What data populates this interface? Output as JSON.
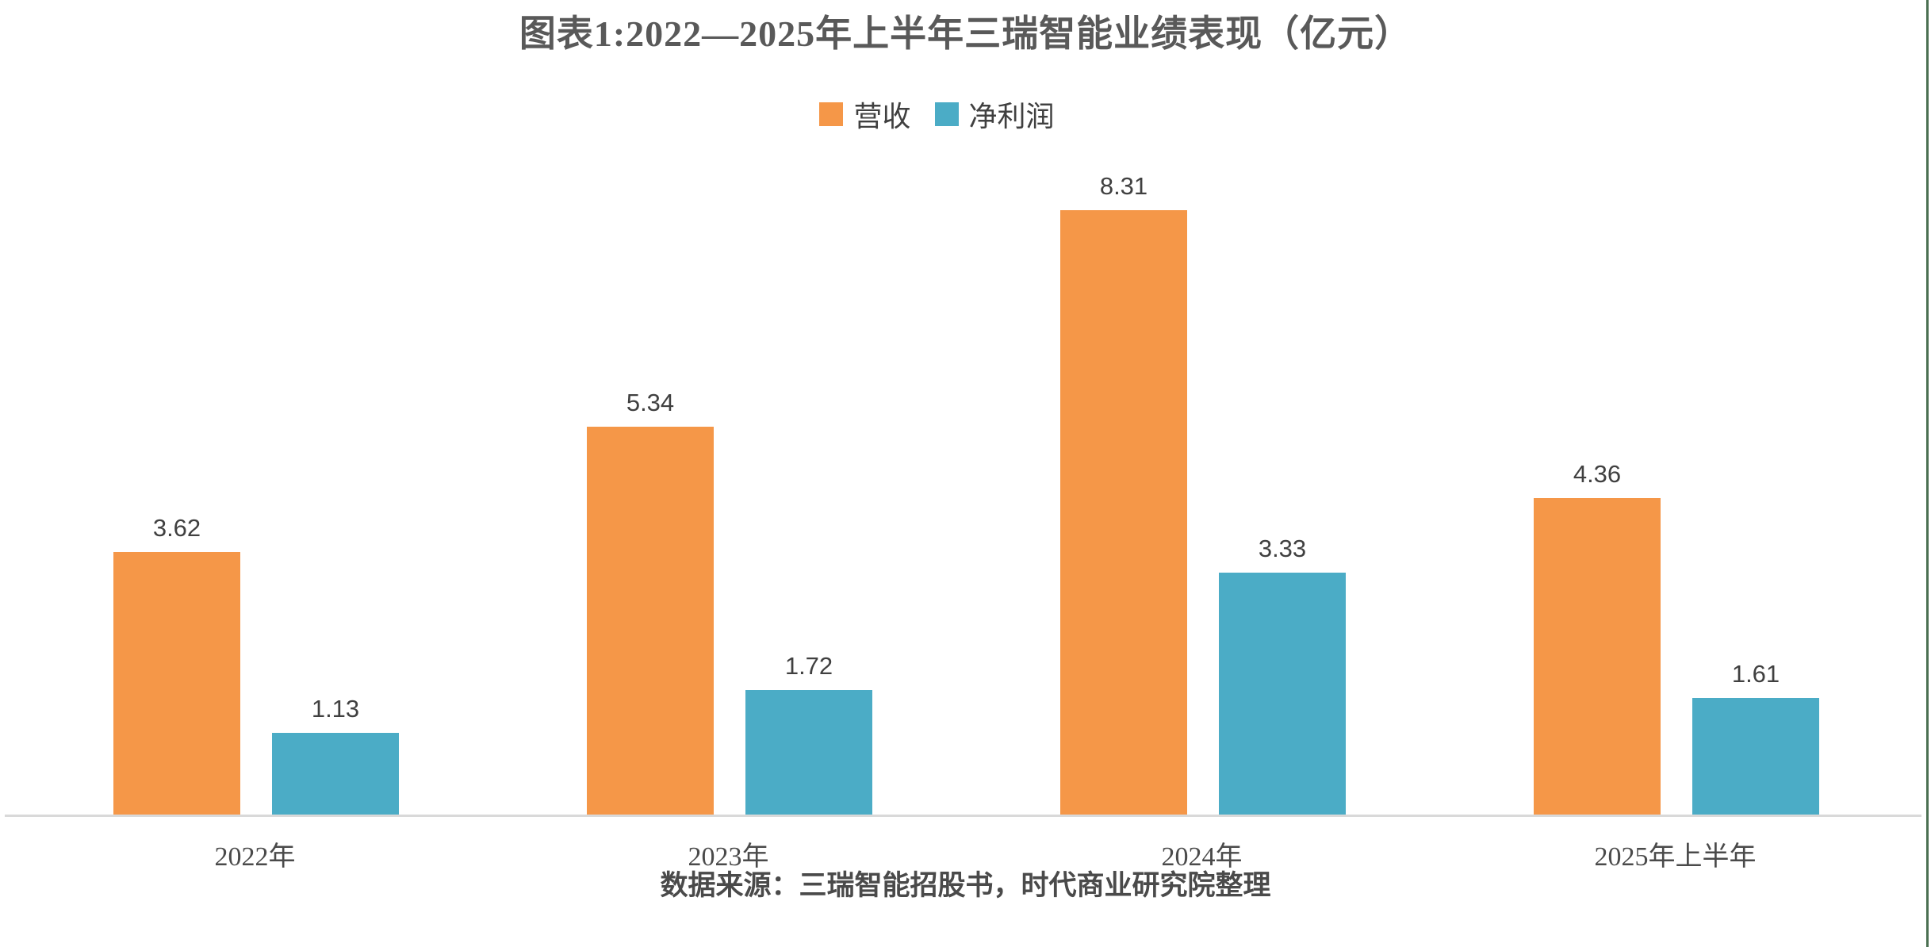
{
  "page": {
    "background": "#ffffff",
    "right_border_color": "#4b7052"
  },
  "chart_data": {
    "type": "bar",
    "title": "图表1:2022—2025年上半年三瑞智能业绩表现（亿元）",
    "categories": [
      "2022年",
      "2023年",
      "2024年",
      "2025年上半年"
    ],
    "series": [
      {
        "name": "营收",
        "color": "#F59748",
        "values": [
          3.62,
          5.34,
          8.31,
          4.36
        ]
      },
      {
        "name": "净利润",
        "color": "#4BACC6",
        "values": [
          1.13,
          1.72,
          3.33,
          1.61
        ]
      }
    ],
    "unit": "亿元",
    "ylim": [
      0,
      9
    ],
    "grid": false,
    "legend_position": "top",
    "value_labels_shown": true,
    "axis_line_color": "#D9D9D9",
    "source_note": "数据来源：三瑞智能招股书，时代商业研究院整理"
  }
}
